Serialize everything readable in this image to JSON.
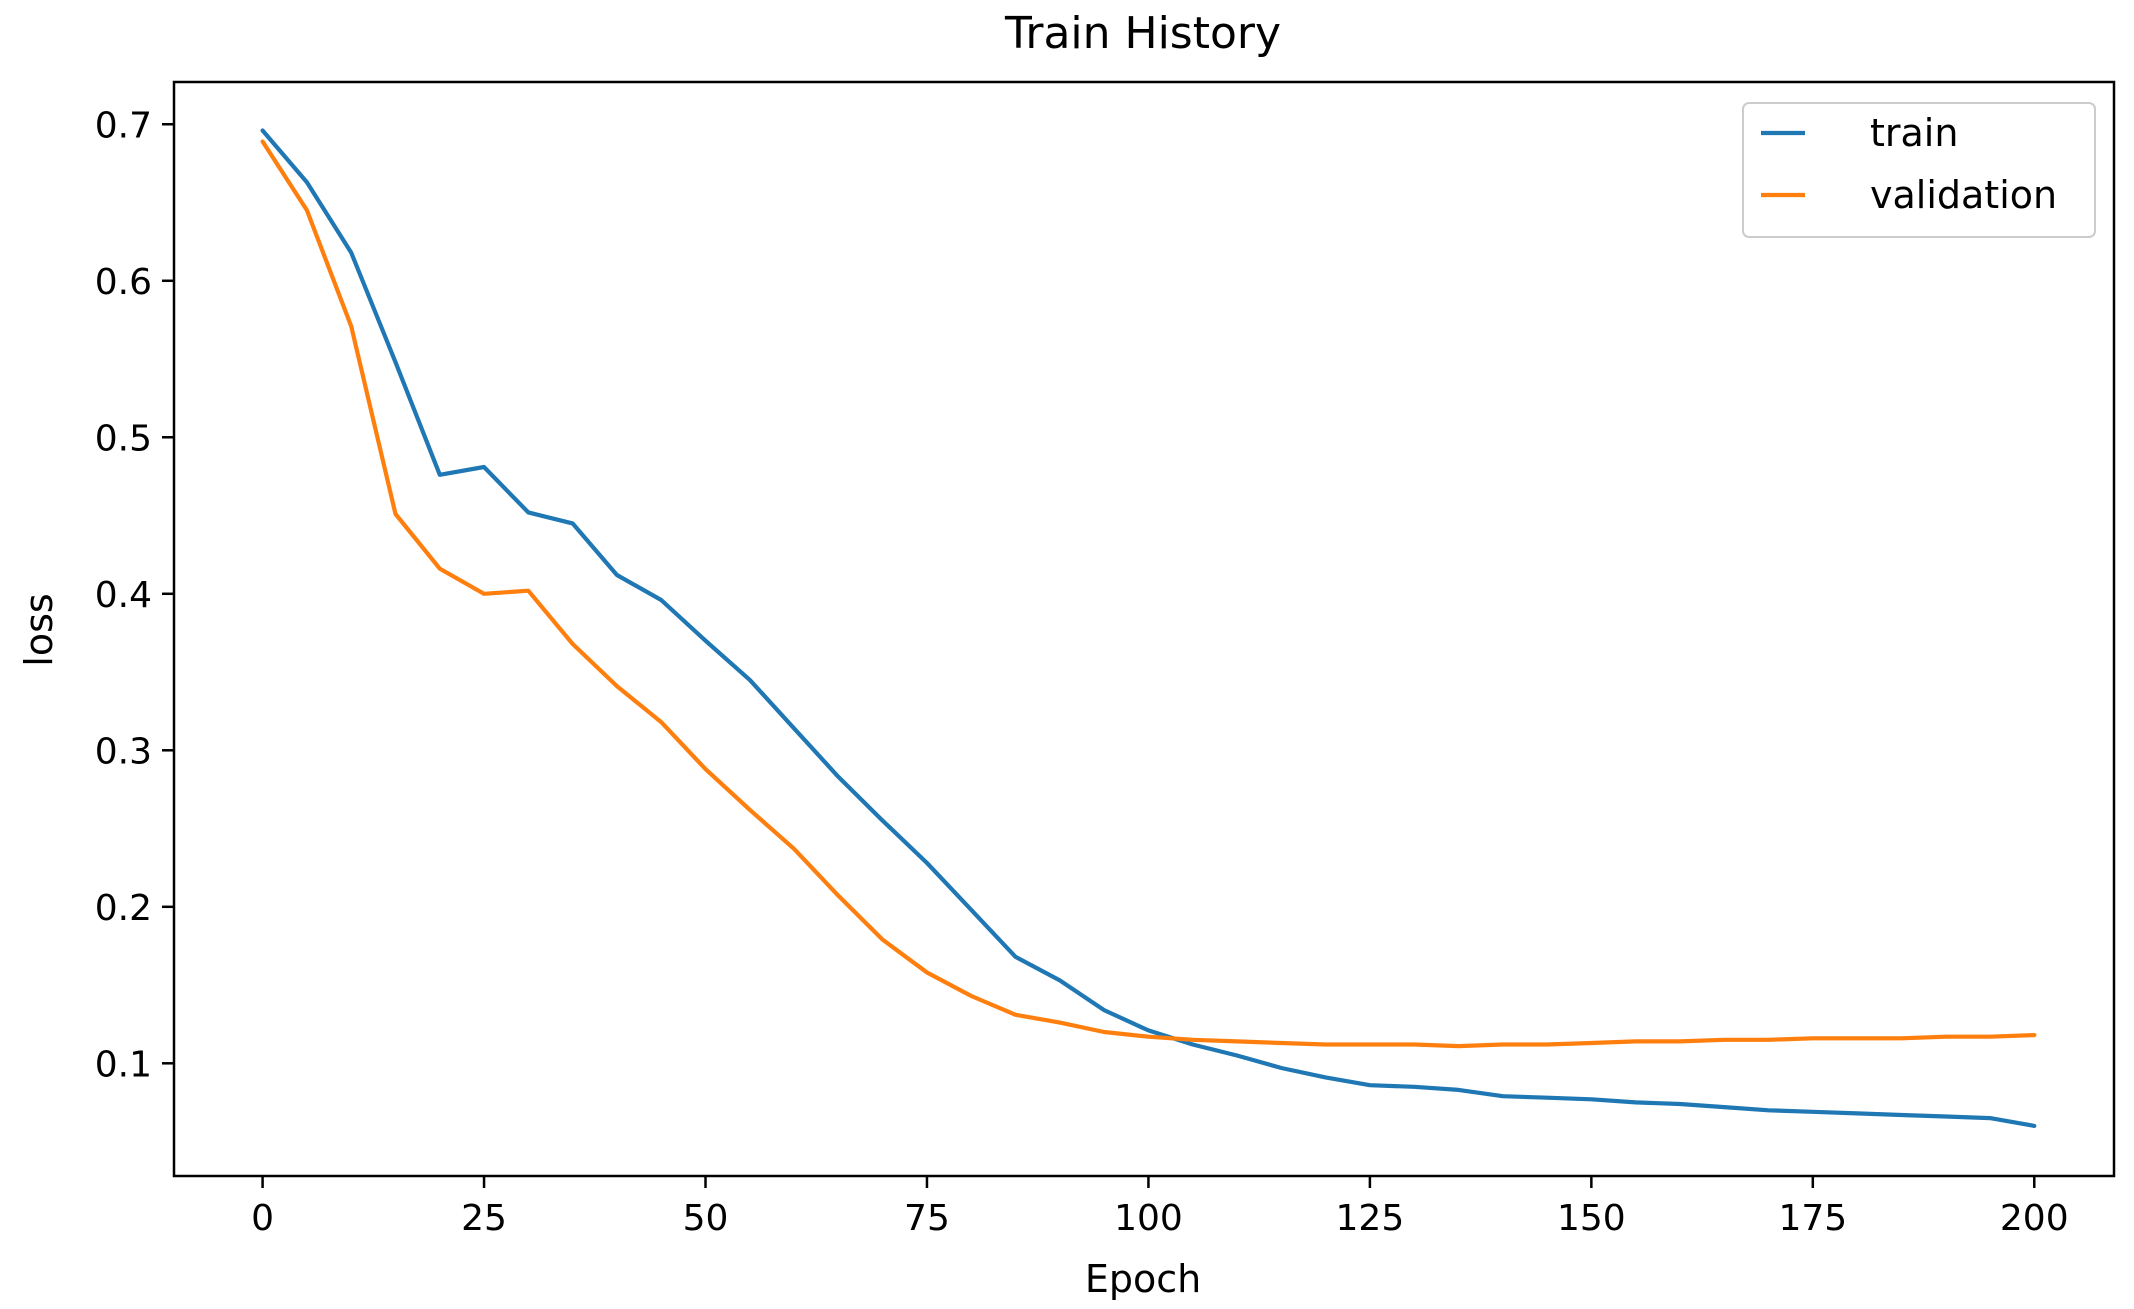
{
  "chart_data": {
    "type": "line",
    "title": "Train History",
    "xlabel": "Epoch",
    "ylabel": "loss",
    "xlim": [
      -10,
      209
    ],
    "ylim": [
      0.028,
      0.727
    ],
    "xticks": [
      0,
      25,
      50,
      75,
      100,
      125,
      150,
      175,
      200
    ],
    "xtick_labels": [
      "0",
      "25",
      "50",
      "75",
      "100",
      "125",
      "150",
      "175",
      "200"
    ],
    "yticks": [
      0.1,
      0.2,
      0.3,
      0.4,
      0.5,
      0.6,
      0.7
    ],
    "ytick_labels": [
      "0.1",
      "0.2",
      "0.3",
      "0.4",
      "0.5",
      "0.6",
      "0.7"
    ],
    "grid": false,
    "legend_position": "top-right",
    "x_step": 5,
    "series": [
      {
        "name": "train",
        "color": "#1f77b4",
        "values": [
          0.696,
          0.663,
          0.618,
          0.548,
          0.476,
          0.481,
          0.452,
          0.445,
          0.412,
          0.396,
          0.37,
          0.345,
          0.314,
          0.283,
          0.255,
          0.228,
          0.198,
          0.168,
          0.153,
          0.134,
          0.121,
          0.112,
          0.105,
          0.097,
          0.091,
          0.086,
          0.085,
          0.083,
          0.079,
          0.078,
          0.077,
          0.075,
          0.074,
          0.072,
          0.07,
          0.069,
          0.068,
          0.067,
          0.066,
          0.065,
          0.06
        ]
      },
      {
        "name": "validation",
        "color": "#ff7f0e",
        "values": [
          0.689,
          0.645,
          0.571,
          0.451,
          0.416,
          0.4,
          0.402,
          0.368,
          0.341,
          0.318,
          0.288,
          0.262,
          0.237,
          0.207,
          0.179,
          0.158,
          0.143,
          0.131,
          0.126,
          0.12,
          0.117,
          0.115,
          0.114,
          0.113,
          0.112,
          0.112,
          0.112,
          0.111,
          0.112,
          0.112,
          0.113,
          0.114,
          0.114,
          0.115,
          0.115,
          0.116,
          0.116,
          0.116,
          0.117,
          0.117,
          0.118
        ]
      }
    ]
  }
}
